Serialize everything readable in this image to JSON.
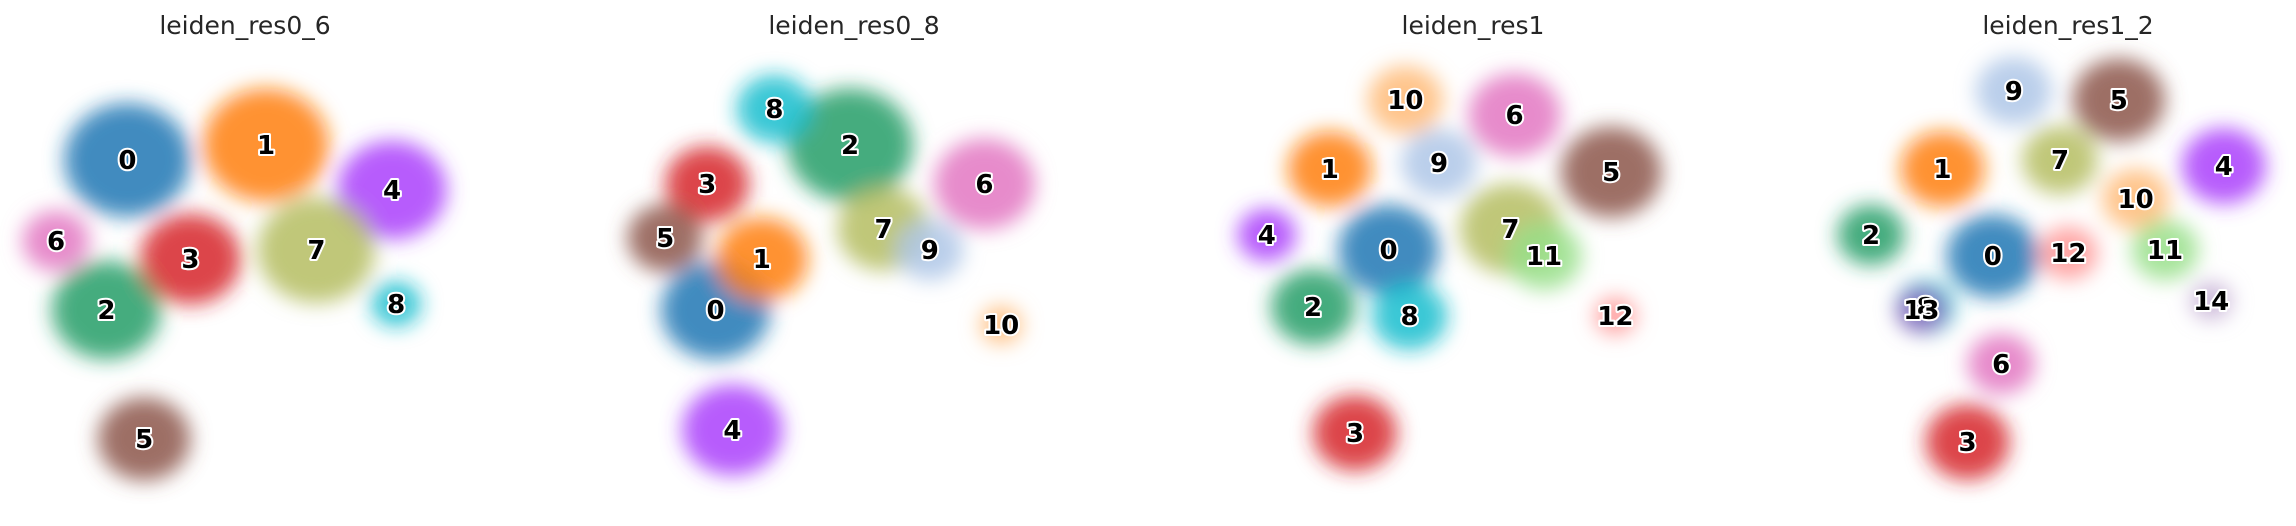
{
  "chart_data": [
    {
      "type": "scatter",
      "title": "leiden_res0_6",
      "clusters": [
        {
          "label": "0",
          "color": "#1f77b4",
          "x": 0.22,
          "y": 0.8,
          "r": 0.15
        },
        {
          "label": "1",
          "color": "#ff7f0e",
          "x": 0.55,
          "y": 0.85,
          "r": 0.15
        },
        {
          "label": "2",
          "color": "#279e68",
          "x": 0.17,
          "y": 0.3,
          "r": 0.13
        },
        {
          "label": "3",
          "color": "#d62728",
          "x": 0.37,
          "y": 0.47,
          "r": 0.12
        },
        {
          "label": "4",
          "color": "#aa40fc",
          "x": 0.85,
          "y": 0.7,
          "r": 0.13
        },
        {
          "label": "5",
          "color": "#8c564b",
          "x": 0.26,
          "y": -0.13,
          "r": 0.11
        },
        {
          "label": "6",
          "color": "#e377c2",
          "x": 0.05,
          "y": 0.53,
          "r": 0.08
        },
        {
          "label": "7",
          "color": "#b5bd61",
          "x": 0.67,
          "y": 0.5,
          "r": 0.14
        },
        {
          "label": "8",
          "color": "#17becf",
          "x": 0.86,
          "y": 0.32,
          "r": 0.06
        }
      ]
    },
    {
      "type": "scatter",
      "title": "leiden_res0_8",
      "clusters": [
        {
          "label": "0",
          "color": "#1f77b4",
          "x": 0.18,
          "y": 0.3,
          "r": 0.13
        },
        {
          "label": "1",
          "color": "#ff7f0e",
          "x": 0.29,
          "y": 0.47,
          "r": 0.11
        },
        {
          "label": "2",
          "color": "#279e68",
          "x": 0.5,
          "y": 0.85,
          "r": 0.15
        },
        {
          "label": "3",
          "color": "#d62728",
          "x": 0.16,
          "y": 0.72,
          "r": 0.1
        },
        {
          "label": "4",
          "color": "#aa40fc",
          "x": 0.22,
          "y": -0.1,
          "r": 0.12
        },
        {
          "label": "5",
          "color": "#8c564b",
          "x": 0.06,
          "y": 0.54,
          "r": 0.09
        },
        {
          "label": "6",
          "color": "#e377c2",
          "x": 0.82,
          "y": 0.72,
          "r": 0.12
        },
        {
          "label": "7",
          "color": "#b5bd61",
          "x": 0.58,
          "y": 0.57,
          "r": 0.11
        },
        {
          "label": "8",
          "color": "#17becf",
          "x": 0.32,
          "y": 0.97,
          "r": 0.09
        },
        {
          "label": "9",
          "color": "#aec7e8",
          "x": 0.69,
          "y": 0.5,
          "r": 0.08
        },
        {
          "label": "10",
          "color": "#ffbb78",
          "x": 0.86,
          "y": 0.25,
          "r": 0.05
        }
      ]
    },
    {
      "type": "scatter",
      "title": "leiden_res1",
      "clusters": [
        {
          "label": "0",
          "color": "#1f77b4",
          "x": 0.33,
          "y": 0.5,
          "r": 0.12
        },
        {
          "label": "1",
          "color": "#ff7f0e",
          "x": 0.19,
          "y": 0.77,
          "r": 0.1
        },
        {
          "label": "2",
          "color": "#279e68",
          "x": 0.15,
          "y": 0.31,
          "r": 0.1
        },
        {
          "label": "3",
          "color": "#d62728",
          "x": 0.25,
          "y": -0.11,
          "r": 0.1
        },
        {
          "label": "4",
          "color": "#aa40fc",
          "x": 0.04,
          "y": 0.55,
          "r": 0.07
        },
        {
          "label": "5",
          "color": "#8c564b",
          "x": 0.86,
          "y": 0.76,
          "r": 0.12
        },
        {
          "label": "6",
          "color": "#e377c2",
          "x": 0.63,
          "y": 0.95,
          "r": 0.11
        },
        {
          "label": "7",
          "color": "#b5bd61",
          "x": 0.62,
          "y": 0.57,
          "r": 0.12
        },
        {
          "label": "8",
          "color": "#17becf",
          "x": 0.38,
          "y": 0.28,
          "r": 0.09
        },
        {
          "label": "9",
          "color": "#aec7e8",
          "x": 0.45,
          "y": 0.79,
          "r": 0.09
        },
        {
          "label": "10",
          "color": "#ffbb78",
          "x": 0.37,
          "y": 1.0,
          "r": 0.09
        },
        {
          "label": "11",
          "color": "#98df8a",
          "x": 0.7,
          "y": 0.48,
          "r": 0.09
        },
        {
          "label": "12",
          "color": "#ff9896",
          "x": 0.87,
          "y": 0.28,
          "r": 0.05
        }
      ]
    },
    {
      "type": "scatter",
      "title": "leiden_res1_2",
      "clusters": [
        {
          "label": "0",
          "color": "#1f77b4",
          "x": 0.34,
          "y": 0.48,
          "r": 0.11
        },
        {
          "label": "1",
          "color": "#ff7f0e",
          "x": 0.22,
          "y": 0.77,
          "r": 0.1
        },
        {
          "label": "2",
          "color": "#279e68",
          "x": 0.05,
          "y": 0.55,
          "r": 0.08
        },
        {
          "label": "3",
          "color": "#d62728",
          "x": 0.28,
          "y": -0.14,
          "r": 0.1
        },
        {
          "label": "4",
          "color": "#aa40fc",
          "x": 0.89,
          "y": 0.78,
          "r": 0.1
        },
        {
          "label": "5",
          "color": "#8c564b",
          "x": 0.64,
          "y": 1.0,
          "r": 0.11
        },
        {
          "label": "6",
          "color": "#e377c2",
          "x": 0.36,
          "y": 0.12,
          "r": 0.08
        },
        {
          "label": "7",
          "color": "#b5bd61",
          "x": 0.5,
          "y": 0.8,
          "r": 0.09
        },
        {
          "label": "8",
          "color": "#17becf",
          "x": 0.18,
          "y": 0.31,
          "r": 0.07
        },
        {
          "label": "9",
          "color": "#aec7e8",
          "x": 0.39,
          "y": 1.03,
          "r": 0.09
        },
        {
          "label": "10",
          "color": "#ffbb78",
          "x": 0.68,
          "y": 0.67,
          "r": 0.08
        },
        {
          "label": "11",
          "color": "#98df8a",
          "x": 0.75,
          "y": 0.5,
          "r": 0.08
        },
        {
          "label": "12",
          "color": "#ff9896",
          "x": 0.52,
          "y": 0.49,
          "r": 0.07
        },
        {
          "label": "13",
          "color": "#9467bd",
          "x": 0.17,
          "y": 0.3,
          "r": 0.06
        },
        {
          "label": "14",
          "color": "#c5b0d5",
          "x": 0.86,
          "y": 0.33,
          "r": 0.05
        }
      ]
    }
  ]
}
